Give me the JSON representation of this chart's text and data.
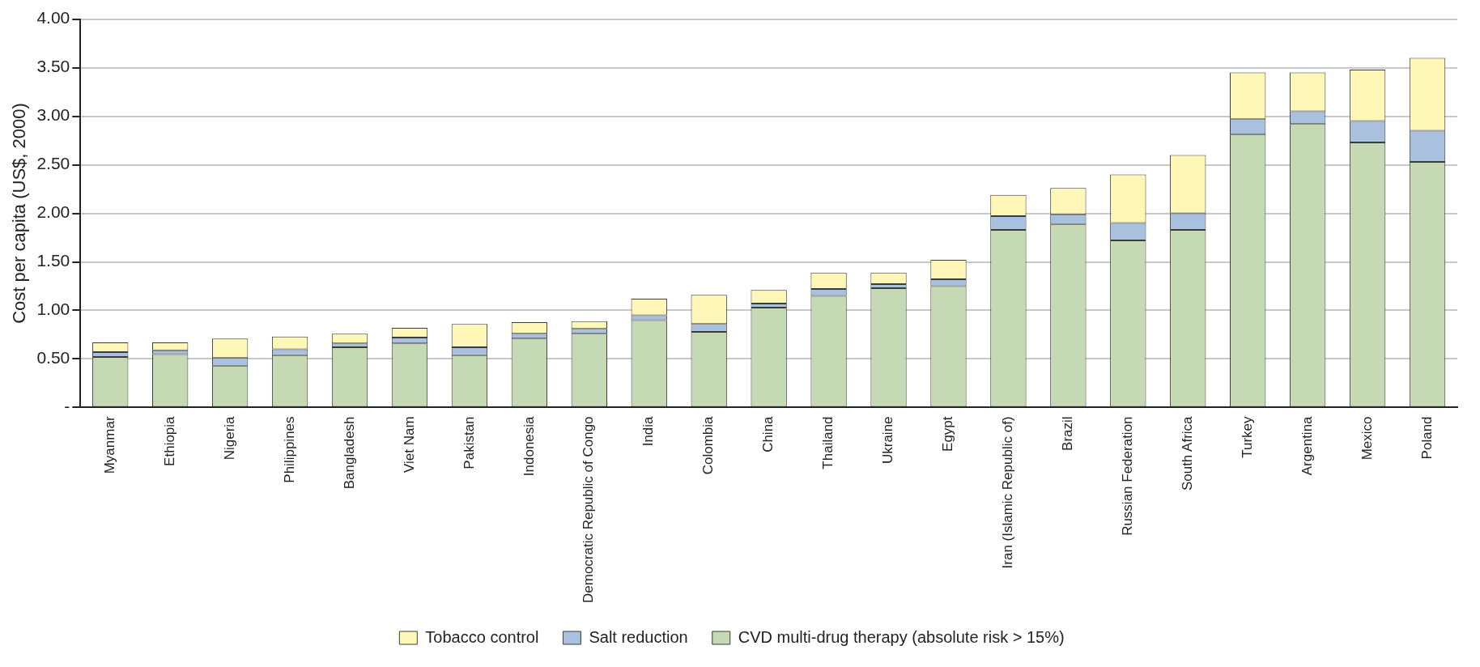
{
  "chart_data": {
    "type": "bar",
    "stacked": true,
    "ylabel": "Cost per capita (US$, 2000)",
    "categories": [
      "Myanmar",
      "Ethiopia",
      "Nigeria",
      "Philippines",
      "Bangladesh",
      "Viet Nam",
      "Pakistan",
      "Indonesia",
      "Democratic Republic of Congo",
      "India",
      "Colombia",
      "China",
      "Thailand",
      "Ukraine",
      "Egypt",
      "Iran (Islamic Republic of)",
      "Brazil",
      "Russian Federation",
      "South Africa",
      "Turkey",
      "Argentina",
      "Mexico",
      "Poland"
    ],
    "series": [
      {
        "name": "CVD multi-drug therapy (absolute risk > 15%)",
        "color": "#c4d9b4",
        "values": [
          0.52,
          0.55,
          0.43,
          0.54,
          0.62,
          0.66,
          0.54,
          0.71,
          0.76,
          0.9,
          0.78,
          1.03,
          1.15,
          1.23,
          1.25,
          1.83,
          1.89,
          1.72,
          1.83,
          2.81,
          2.92,
          2.73,
          2.53
        ]
      },
      {
        "name": "Salt reduction",
        "color": "#a9c0de",
        "values": [
          0.05,
          0.04,
          0.08,
          0.06,
          0.04,
          0.06,
          0.08,
          0.05,
          0.05,
          0.05,
          0.08,
          0.04,
          0.07,
          0.04,
          0.07,
          0.14,
          0.1,
          0.18,
          0.17,
          0.16,
          0.13,
          0.22,
          0.32
        ]
      },
      {
        "name": "Tobacco control",
        "color": "#fef7b8",
        "values": [
          0.1,
          0.08,
          0.2,
          0.13,
          0.1,
          0.1,
          0.24,
          0.12,
          0.08,
          0.17,
          0.3,
          0.14,
          0.17,
          0.12,
          0.2,
          0.22,
          0.27,
          0.5,
          0.6,
          0.48,
          0.4,
          0.53,
          0.75
        ]
      }
    ],
    "ylim": [
      0,
      4
    ],
    "yticks": [
      {
        "value": 0,
        "label": "-"
      },
      {
        "value": 0.5,
        "label": "0.50"
      },
      {
        "value": 1,
        "label": "1.00"
      },
      {
        "value": 1.5,
        "label": "1.50"
      },
      {
        "value": 2,
        "label": "2.00"
      },
      {
        "value": 2.5,
        "label": "2.50"
      },
      {
        "value": 3,
        "label": "3.00"
      },
      {
        "value": 3.5,
        "label": "3.50"
      },
      {
        "value": 4,
        "label": "4.00"
      }
    ],
    "grid": "y",
    "legend": "bottom"
  }
}
